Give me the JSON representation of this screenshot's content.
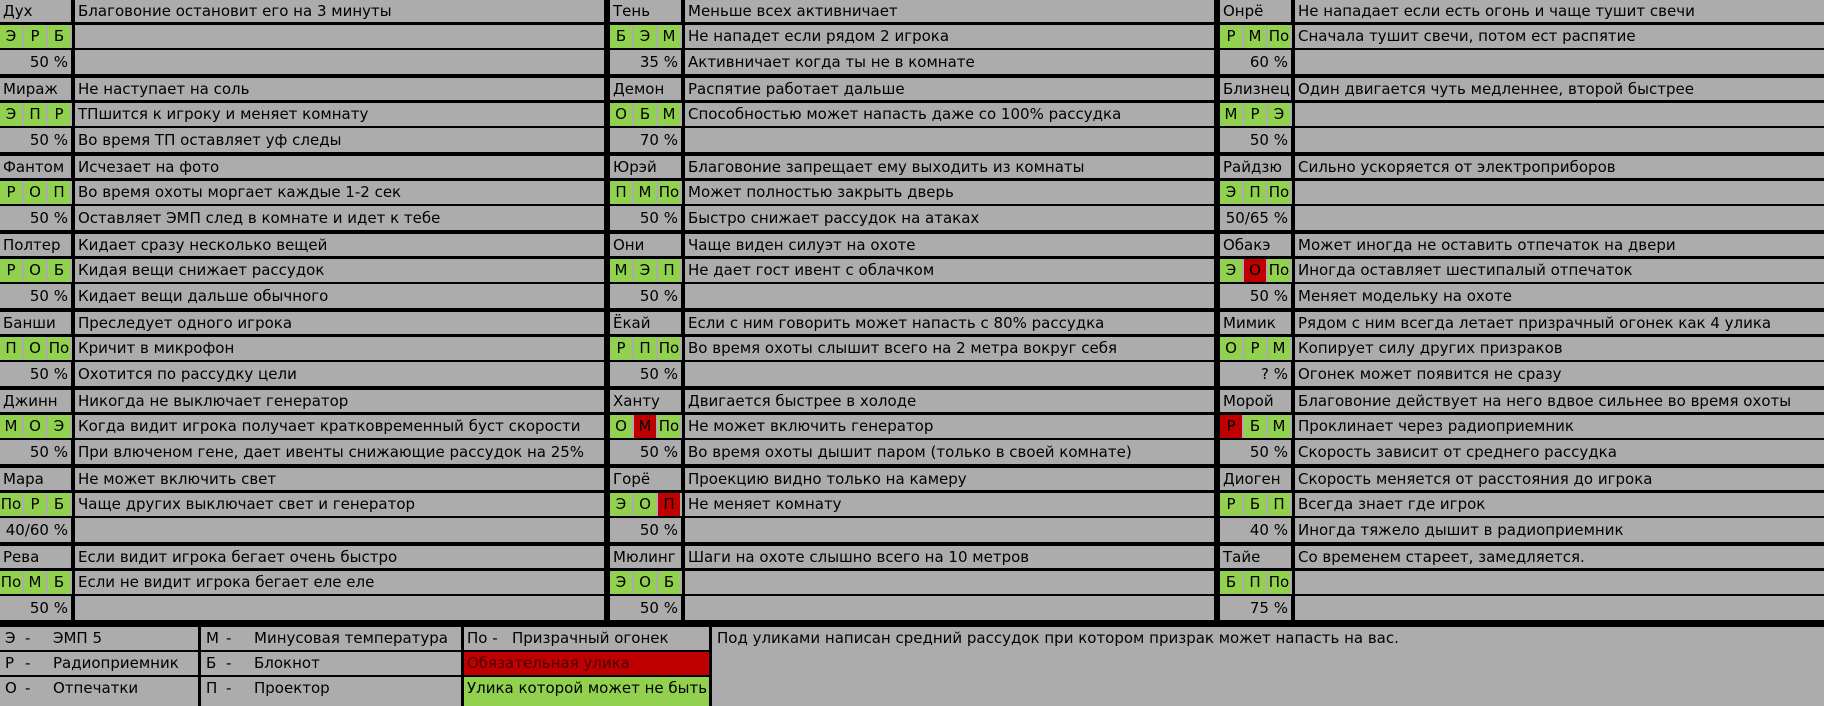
{
  "ghosts": [
    {
      "name": "Дух",
      "ev": [
        {
          "t": "Э",
          "s": "ok"
        },
        {
          "t": "Р",
          "s": "ok"
        },
        {
          "t": "Б",
          "s": "ok"
        }
      ],
      "pct": "50 %",
      "lines": [
        "Благовоние остановит его на 3 минуты",
        "",
        ""
      ]
    },
    {
      "name": "Тень",
      "ev": [
        {
          "t": "Б",
          "s": "ok"
        },
        {
          "t": "Э",
          "s": "ok"
        },
        {
          "t": "М",
          "s": "ok"
        }
      ],
      "pct": "35 %",
      "lines": [
        "Меньше всех активничает",
        "Не нападет если рядом 2 игрока",
        "Активничает когда ты не в комнате"
      ]
    },
    {
      "name": "Онрё",
      "ev": [
        {
          "t": "Р",
          "s": "ok"
        },
        {
          "t": "М",
          "s": "ok"
        },
        {
          "t": "По",
          "s": "ok"
        }
      ],
      "pct": "60 %",
      "lines": [
        "Не нападает если есть огонь и чаще тушит свечи",
        "Сначала тушит свечи, потом ест распятие",
        ""
      ]
    },
    {
      "name": "Мираж",
      "ev": [
        {
          "t": "Э",
          "s": "ok"
        },
        {
          "t": "П",
          "s": "ok"
        },
        {
          "t": "Р",
          "s": "ok"
        }
      ],
      "pct": "50 %",
      "lines": [
        "Не наступает на соль",
        "ТПшится к игроку и меняет комнату",
        "Во время ТП оставляет уф следы"
      ]
    },
    {
      "name": "Демон",
      "ev": [
        {
          "t": "О",
          "s": "ok"
        },
        {
          "t": "Б",
          "s": "ok"
        },
        {
          "t": "М",
          "s": "ok"
        }
      ],
      "pct": "70 %",
      "lines": [
        "Распятие работает дальше",
        "Способностью может напасть даже со 100% рассудка",
        ""
      ]
    },
    {
      "name": "Близнец",
      "ev": [
        {
          "t": "М",
          "s": "ok"
        },
        {
          "t": "Р",
          "s": "ok"
        },
        {
          "t": "Э",
          "s": "ok"
        }
      ],
      "pct": "50 %",
      "lines": [
        "Один двигается чуть медленнее, второй быстрее",
        "",
        ""
      ]
    },
    {
      "name": "Фантом",
      "ev": [
        {
          "t": "Р",
          "s": "ok"
        },
        {
          "t": "О",
          "s": "ok"
        },
        {
          "t": "П",
          "s": "ok"
        }
      ],
      "pct": "50 %",
      "lines": [
        "Исчезает на фото",
        "Во время охоты моргает каждые 1-2 сек",
        "Оставляет ЭМП след в комнате и идет к тебе"
      ]
    },
    {
      "name": "Юрэй",
      "ev": [
        {
          "t": "П",
          "s": "ok"
        },
        {
          "t": "М",
          "s": "ok"
        },
        {
          "t": "По",
          "s": "ok"
        }
      ],
      "pct": "50 %",
      "lines": [
        "Благовоние запрещает ему выходить из комнаты",
        "Может полностью закрыть дверь",
        "Быстро снижает рассудок на атаках"
      ]
    },
    {
      "name": "Райдзю",
      "ev": [
        {
          "t": "Э",
          "s": "ok"
        },
        {
          "t": "П",
          "s": "ok"
        },
        {
          "t": "По",
          "s": "ok"
        }
      ],
      "pct": "50/65 %",
      "lines": [
        "Сильно ускоряется от электроприборов",
        "",
        ""
      ]
    },
    {
      "name": "Полтер",
      "ev": [
        {
          "t": "Р",
          "s": "ok"
        },
        {
          "t": "О",
          "s": "ok"
        },
        {
          "t": "Б",
          "s": "ok"
        }
      ],
      "pct": "50 %",
      "lines": [
        "Кидает сразу несколько вещей",
        "Кидая вещи снижает рассудок",
        "Кидает вещи дальше обычного"
      ]
    },
    {
      "name": "Они",
      "ev": [
        {
          "t": "М",
          "s": "ok"
        },
        {
          "t": "Э",
          "s": "ok"
        },
        {
          "t": "П",
          "s": "ok"
        }
      ],
      "pct": "50 %",
      "lines": [
        "Чаще виден силуэт на охоте",
        "Не дает гост ивент с облачком",
        ""
      ]
    },
    {
      "name": "Обакэ",
      "ev": [
        {
          "t": "Э",
          "s": "ok"
        },
        {
          "t": "О",
          "s": "req"
        },
        {
          "t": "По",
          "s": "ok"
        }
      ],
      "pct": "50 %",
      "lines": [
        "Может иногда не оставить отпечаток на двери",
        "Иногда оставляет шестипалый отпечаток",
        "Меняет модельку на охоте"
      ]
    },
    {
      "name": "Банши",
      "ev": [
        {
          "t": "П",
          "s": "ok"
        },
        {
          "t": "О",
          "s": "ok"
        },
        {
          "t": "По",
          "s": "ok"
        }
      ],
      "pct": "50 %",
      "lines": [
        "Преследует одного игрока",
        "Кричит в микрофон",
        "Охотится по рассудку цели"
      ]
    },
    {
      "name": "Ёкай",
      "ev": [
        {
          "t": "Р",
          "s": "ok"
        },
        {
          "t": "П",
          "s": "ok"
        },
        {
          "t": "По",
          "s": "ok"
        }
      ],
      "pct": "50 %",
      "lines": [
        "Если с ним говорить может напасть с 80% рассудка",
        "Во время охоты слышит всего на 2 метра вокруг себя",
        ""
      ]
    },
    {
      "name": "Мимик",
      "ev": [
        {
          "t": "О",
          "s": "ok"
        },
        {
          "t": "Р",
          "s": "ok"
        },
        {
          "t": "М",
          "s": "ok"
        }
      ],
      "pct": "? %",
      "lines": [
        "Рядом с ним всегда летает призрачный огонек как 4 улика",
        "Копирует силу других призраков",
        "Огонек может появится не сразу"
      ]
    },
    {
      "name": "Джинн",
      "ev": [
        {
          "t": "М",
          "s": "ok"
        },
        {
          "t": "О",
          "s": "ok"
        },
        {
          "t": "Э",
          "s": "ok"
        }
      ],
      "pct": "50 %",
      "lines": [
        "Никогда не выключает генератор",
        "Когда видит игрока получает кратковременный буст скорости",
        "При влюченом гене, дает ивенты снижающие рассудок на 25%"
      ]
    },
    {
      "name": "Ханту",
      "ev": [
        {
          "t": "О",
          "s": "ok"
        },
        {
          "t": "М",
          "s": "req"
        },
        {
          "t": "По",
          "s": "ok"
        }
      ],
      "pct": "50 %",
      "lines": [
        "Двигается быстрее в холоде",
        "Не может включить генератор",
        "Во время охоты дышит паром (только в своей комнате)"
      ]
    },
    {
      "name": "Морой",
      "ev": [
        {
          "t": "Р",
          "s": "req"
        },
        {
          "t": "Б",
          "s": "ok"
        },
        {
          "t": "М",
          "s": "ok"
        }
      ],
      "pct": "50 %",
      "lines": [
        "Благовоние действует на него вдвое сильнее во время охоты",
        "Проклинает через радиоприемник",
        "Скорость зависит от среднего рассудка"
      ]
    },
    {
      "name": "Мара",
      "ev": [
        {
          "t": "По",
          "s": "ok"
        },
        {
          "t": "Р",
          "s": "ok"
        },
        {
          "t": "Б",
          "s": "ok"
        }
      ],
      "pct": "40/60 %",
      "lines": [
        "Не может включить свет",
        "Чаще других выключает свет и генератор",
        ""
      ]
    },
    {
      "name": "Горё",
      "ev": [
        {
          "t": "Э",
          "s": "ok"
        },
        {
          "t": "О",
          "s": "ok"
        },
        {
          "t": "П",
          "s": "req"
        }
      ],
      "pct": "50 %",
      "lines": [
        "Проекцию видно только на камеру",
        "Не меняет комнату",
        ""
      ]
    },
    {
      "name": "Диоген",
      "ev": [
        {
          "t": "Р",
          "s": "ok"
        },
        {
          "t": "Б",
          "s": "ok"
        },
        {
          "t": "П",
          "s": "ok"
        }
      ],
      "pct": "40 %",
      "lines": [
        "Скорость меняется от расстояния до игрока",
        "Всегда знает где игрок",
        "Иногда тяжело дышит в радиоприемник"
      ]
    },
    {
      "name": "Рева",
      "ev": [
        {
          "t": "По",
          "s": "ok"
        },
        {
          "t": "М",
          "s": "ok"
        },
        {
          "t": "Б",
          "s": "ok"
        }
      ],
      "pct": "50 %",
      "lines": [
        "Если видит игрока бегает очень быстро",
        "Если не видит игрока бегает еле еле",
        ""
      ]
    },
    {
      "name": "Мюлинг",
      "ev": [
        {
          "t": "Э",
          "s": "ok"
        },
        {
          "t": "О",
          "s": "ok"
        },
        {
          "t": "Б",
          "s": "ok"
        }
      ],
      "pct": "50 %",
      "lines": [
        "Шаги на охоте слышно всего на 10 метров",
        "",
        ""
      ]
    },
    {
      "name": "Тайе",
      "ev": [
        {
          "t": "Б",
          "s": "ok"
        },
        {
          "t": "П",
          "s": "ok"
        },
        {
          "t": "По",
          "s": "ok"
        }
      ],
      "pct": "75 %",
      "lines": [
        "Со временем стареет, замедляется.",
        "",
        ""
      ]
    }
  ],
  "legend": {
    "emp": {
      "k": "Э",
      "label": "ЭМП 5"
    },
    "radio": {
      "k": "Р",
      "label": "Радиоприемник"
    },
    "prints": {
      "k": "О",
      "label": "Отпечатки"
    },
    "cold": {
      "k": "М",
      "label": "Минусовая температура"
    },
    "book": {
      "k": "Б",
      "label": "Блокнот"
    },
    "proj": {
      "k": "П",
      "label": "Проектор"
    },
    "orb": {
      "k": "По",
      "label": "Призрачный огонек"
    },
    "required": "Обязательная улика",
    "maybe": "Улика которой может не быть",
    "note": "Под уликами написан средний рассудок при котором призрак может напасть на вас."
  },
  "colors": {
    "ok": "#92d050",
    "req": "#c00000",
    "cell": "#acacac"
  }
}
